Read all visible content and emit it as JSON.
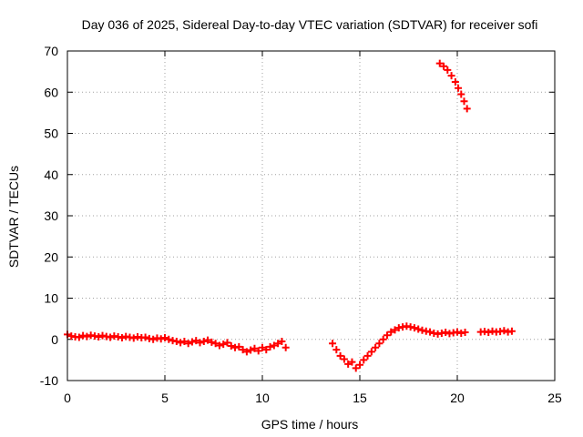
{
  "chart_data": {
    "type": "scatter",
    "title": "Day 036 of 2025, Sidereal Day-to-day VTEC variation (SDTVAR) for receiver sofi",
    "xlabel": "GPS time / hours",
    "ylabel": "SDTVAR / TECUs",
    "xlim": [
      0,
      25
    ],
    "ylim": [
      -10,
      70
    ],
    "xticks": [
      "0",
      "5",
      "10",
      "15",
      "20",
      "25"
    ],
    "yticks": [
      "-10",
      "0",
      "10",
      "20",
      "30",
      "40",
      "50",
      "60",
      "70"
    ],
    "grid": true,
    "marker": "plus",
    "color": "#ff0000",
    "series": [
      {
        "name": "sofi",
        "x": [
          0.0,
          0.2,
          0.4,
          0.6,
          0.8,
          1.0,
          1.2,
          1.4,
          1.6,
          1.8,
          2.0,
          2.2,
          2.4,
          2.6,
          2.8,
          3.0,
          3.2,
          3.4,
          3.6,
          3.8,
          4.0,
          4.2,
          4.4,
          4.6,
          4.8,
          5.0,
          5.2,
          5.4,
          5.6,
          5.8,
          6.0,
          6.2,
          6.4,
          6.6,
          6.8,
          7.0,
          7.2,
          7.4,
          7.6,
          7.8,
          8.0,
          8.2,
          8.4,
          8.6,
          8.8,
          9.0,
          9.2,
          9.4,
          9.6,
          9.8,
          10.0,
          10.2,
          10.4,
          10.6,
          10.8,
          11.0,
          11.2,
          13.6,
          13.8,
          14.0,
          14.2,
          14.4,
          14.6,
          14.8,
          15.0,
          15.2,
          15.4,
          15.6,
          15.8,
          16.0,
          16.2,
          16.4,
          16.6,
          16.8,
          17.0,
          17.2,
          17.4,
          17.6,
          17.8,
          18.0,
          18.2,
          18.4,
          18.6,
          18.8,
          19.0,
          19.2,
          19.4,
          19.6,
          19.8,
          20.0,
          20.2,
          20.4,
          19.1,
          19.3,
          19.5,
          19.7,
          19.9,
          20.05,
          20.2,
          20.35,
          20.5,
          21.2,
          21.4,
          21.6,
          21.8,
          22.0,
          22.2,
          22.4,
          22.6,
          22.8
        ],
        "y": [
          1.2,
          0.8,
          0.6,
          0.5,
          0.9,
          0.7,
          1.0,
          0.8,
          0.6,
          0.9,
          0.7,
          0.5,
          0.8,
          0.6,
          0.4,
          0.7,
          0.5,
          0.3,
          0.6,
          0.4,
          0.5,
          0.2,
          0.0,
          0.3,
          0.1,
          0.4,
          0.0,
          -0.3,
          -0.5,
          -0.8,
          -0.5,
          -1.0,
          -0.6,
          -0.3,
          -0.8,
          -0.5,
          -0.2,
          -0.7,
          -1.0,
          -1.5,
          -1.2,
          -0.8,
          -1.6,
          -2.0,
          -1.8,
          -2.5,
          -3.0,
          -2.6,
          -2.2,
          -2.8,
          -2.0,
          -2.5,
          -1.8,
          -1.5,
          -1.0,
          -0.5,
          -2.0,
          -1.0,
          -2.5,
          -4.0,
          -4.8,
          -6.0,
          -5.5,
          -7.0,
          -6.2,
          -5.0,
          -4.0,
          -3.0,
          -2.0,
          -1.0,
          0.0,
          1.0,
          1.8,
          2.3,
          2.8,
          3.0,
          3.2,
          3.0,
          2.8,
          2.5,
          2.2,
          2.0,
          1.8,
          1.5,
          1.3,
          1.5,
          1.7,
          1.4,
          1.6,
          1.8,
          1.5,
          1.7,
          67.0,
          66.3,
          65.4,
          64.0,
          62.5,
          61.0,
          59.5,
          57.8,
          56.0,
          1.8,
          1.9,
          1.7,
          2.0,
          1.8,
          1.9,
          2.1,
          1.8,
          2.0
        ]
      }
    ]
  }
}
